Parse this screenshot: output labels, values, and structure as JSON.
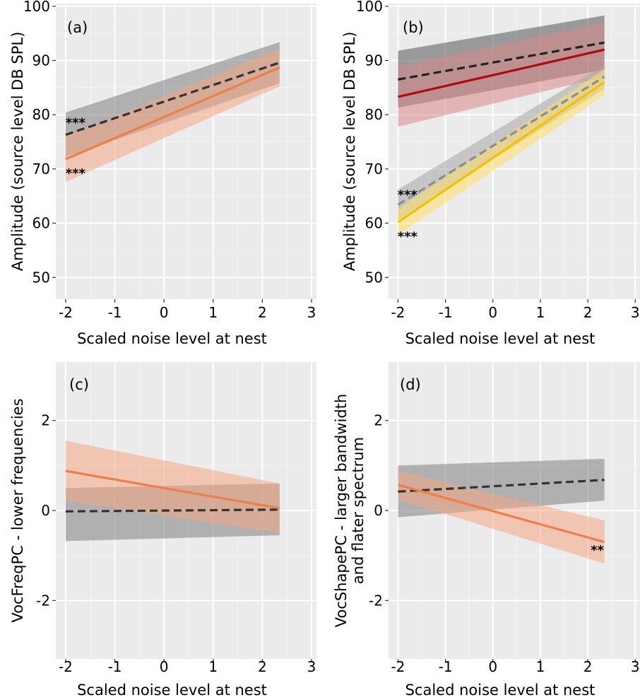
{
  "chart_data": [
    {
      "type": "line",
      "panel": "(a)",
      "xlabel": "Scaled noise level at nest",
      "ylabel": "Amplitude (source level DB SPL)",
      "xlim": [
        -2.2,
        3.1
      ],
      "ylim": [
        46,
        100.5
      ],
      "xticks": [
        "-2",
        "-1",
        "0",
        "1",
        "2",
        "3"
      ],
      "yticks": [
        "50",
        "60",
        "70",
        "80",
        "90",
        "100"
      ],
      "grid": true,
      "series": [
        {
          "color": "#808080",
          "line_color": "#333333",
          "dash": true,
          "x": [
            -2,
            2.35
          ],
          "y": [
            76.3,
            89.6
          ],
          "ci_lower": [
            72.2,
            85.8
          ],
          "ci_upper": [
            80.4,
            93.4
          ]
        },
        {
          "color": "#f4a582",
          "line_color": "#ef7e49",
          "dash": false,
          "x": [
            -2,
            2.35
          ],
          "y": [
            71.8,
            88.7
          ],
          "ci_lower": [
            67.6,
            85.2
          ],
          "ci_upper": [
            76.0,
            92.2
          ]
        }
      ],
      "annotations": [
        {
          "text": "***",
          "x": -1.8,
          "y": 78.8
        },
        {
          "text": "***",
          "x": -1.8,
          "y": 69.5
        }
      ]
    },
    {
      "type": "line",
      "panel": "(b)",
      "xlabel": "Scaled noise level at nest",
      "ylabel": "Amplitude (source level DB SPL)",
      "xlim": [
        -2.2,
        3.1
      ],
      "ylim": [
        46,
        100.5
      ],
      "xticks": [
        "-2",
        "-1",
        "0",
        "1",
        "2",
        "3"
      ],
      "yticks": [
        "50",
        "60",
        "70",
        "80",
        "90",
        "100"
      ],
      "grid": true,
      "series": [
        {
          "color": "#555555",
          "line_color": "#222222",
          "dash": true,
          "x": [
            -2,
            2.35
          ],
          "y": [
            86.5,
            93.3
          ],
          "ci_lower": [
            81.3,
            88.3
          ],
          "ci_upper": [
            91.8,
            98.3
          ]
        },
        {
          "color": "#d98888",
          "line_color": "#b20a0a",
          "dash": false,
          "x": [
            -2,
            2.35
          ],
          "y": [
            83.3,
            92.0
          ],
          "ci_lower": [
            77.8,
            87.0
          ],
          "ci_upper": [
            88.9,
            97.0
          ]
        },
        {
          "color": "#a6a6a6",
          "line_color": "#8c8c8c",
          "dash": true,
          "x": [
            -2,
            2.35
          ],
          "y": [
            63.4,
            87.0
          ],
          "ci_lower": [
            60.6,
            84.8
          ],
          "ci_upper": [
            66.2,
            89.2
          ]
        },
        {
          "color": "#ffe066",
          "line_color": "#f5c000",
          "dash": false,
          "x": [
            -2,
            2.35
          ],
          "y": [
            60.2,
            86.0
          ],
          "ci_lower": [
            57.8,
            83.6
          ],
          "ci_upper": [
            62.6,
            88.4
          ]
        }
      ],
      "annotations": [
        {
          "text": "***",
          "x": -1.8,
          "y": 65.5
        },
        {
          "text": "***",
          "x": -1.8,
          "y": 57.8
        }
      ]
    },
    {
      "type": "line",
      "panel": "(c)",
      "xlabel": "Scaled noise level at nest",
      "ylabel": "VocFreqPC - lower  frequencies",
      "xlim": [
        -2.2,
        3.1
      ],
      "ylim": [
        -3.3,
        3.3
      ],
      "xticks": [
        "-2",
        "-1",
        "0",
        "1",
        "2",
        "3"
      ],
      "yticks": [
        "-2",
        "0",
        "2"
      ],
      "grid": true,
      "series": [
        {
          "color": "#808080",
          "line_color": "#333333",
          "dash": true,
          "x": [
            -2,
            2.35
          ],
          "y": [
            -0.02,
            0.02
          ],
          "ci_lower": [
            -0.68,
            -0.55
          ],
          "ci_upper": [
            0.5,
            0.6
          ]
        },
        {
          "color": "#f4a582",
          "line_color": "#ef7e49",
          "dash": false,
          "x": [
            -2,
            2.35
          ],
          "y": [
            0.88,
            0.05
          ],
          "ci_lower": [
            0.22,
            -0.5
          ],
          "ci_upper": [
            1.55,
            0.6
          ]
        }
      ],
      "annotations": []
    },
    {
      "type": "line",
      "panel": "(d)",
      "xlabel": "Scaled noise level at nest",
      "ylabel": "VocShapePC - larger bandwidth and flater spectrum",
      "ylabel_lines": [
        "VocShapePC - larger bandwidth",
        "and flater spectrum"
      ],
      "xlim": [
        -2.2,
        3.1
      ],
      "ylim": [
        -3.3,
        3.3
      ],
      "xticks": [
        "-2",
        "-1",
        "0",
        "1",
        "2",
        "3"
      ],
      "yticks": [
        "-2",
        "0",
        "2"
      ],
      "grid": true,
      "series": [
        {
          "color": "#808080",
          "line_color": "#333333",
          "dash": true,
          "x": [
            -2,
            2.35
          ],
          "y": [
            0.42,
            0.68
          ],
          "ci_lower": [
            -0.15,
            0.22
          ],
          "ci_upper": [
            1.0,
            1.15
          ]
        },
        {
          "color": "#f4a582",
          "line_color": "#ef7e49",
          "dash": false,
          "x": [
            -2,
            2.35
          ],
          "y": [
            0.57,
            -0.7
          ],
          "ci_lower": [
            0.25,
            -1.18
          ],
          "ci_upper": [
            0.88,
            -0.22
          ]
        }
      ],
      "annotations": [
        {
          "text": "**",
          "x": 2.2,
          "y": -0.85
        }
      ]
    }
  ]
}
